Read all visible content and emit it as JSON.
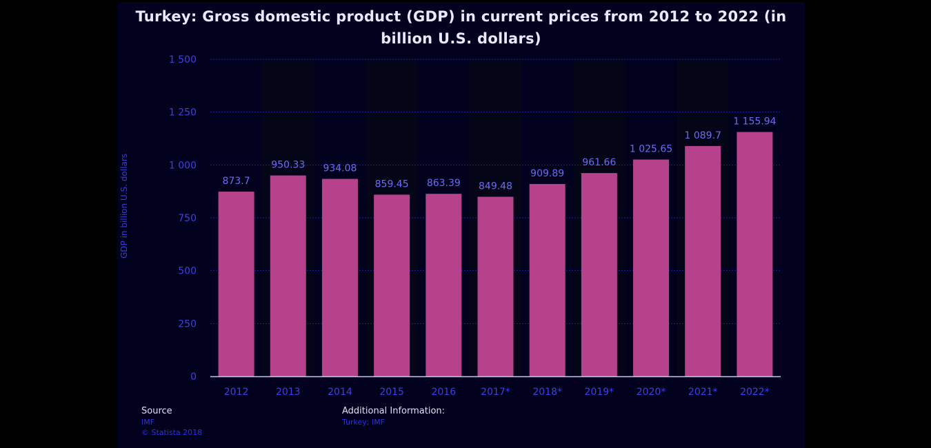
{
  "chart_data": {
    "type": "bar",
    "title": "Turkey: Gross domestic product (GDP) in current prices from 2012 to 2022 (in billion U.S. dollars)",
    "ylabel": "GDP in billion U.S. dollars",
    "xlabel": "",
    "categories": [
      "2012",
      "2013",
      "2014",
      "2015",
      "2016",
      "2017*",
      "2018*",
      "2019*",
      "2020*",
      "2021*",
      "2022*"
    ],
    "values": [
      873.7,
      950.33,
      934.08,
      859.45,
      863.39,
      849.48,
      909.89,
      961.66,
      1025.65,
      1089.7,
      1155.94
    ],
    "value_labels": [
      "873.7",
      "950.33",
      "934.08",
      "859.45",
      "863.39",
      "849.48",
      "909.89",
      "961.66",
      "1 025.65",
      "1 089.7",
      "1 155.94"
    ],
    "ylim": [
      0,
      1500
    ],
    "yticks": [
      0,
      250,
      500,
      750,
      1000,
      1250,
      1500
    ],
    "ytick_labels": [
      "0",
      "250",
      "500",
      "750",
      "1 000",
      "1 250",
      "1 500"
    ],
    "grid": true,
    "legend": "none",
    "colors": {
      "bar": "#b5428a",
      "grid": "#1c1cb0",
      "tick_label": "#3f3fe8",
      "value_label": "#6b6bf5",
      "axis": "#c8c8e8"
    }
  },
  "footer": {
    "source_heading": "Source",
    "source_name": "IMF",
    "copyright": "© Statista 2018",
    "additional_heading": "Additional Information:",
    "additional_text": "Turkey; IMF"
  }
}
